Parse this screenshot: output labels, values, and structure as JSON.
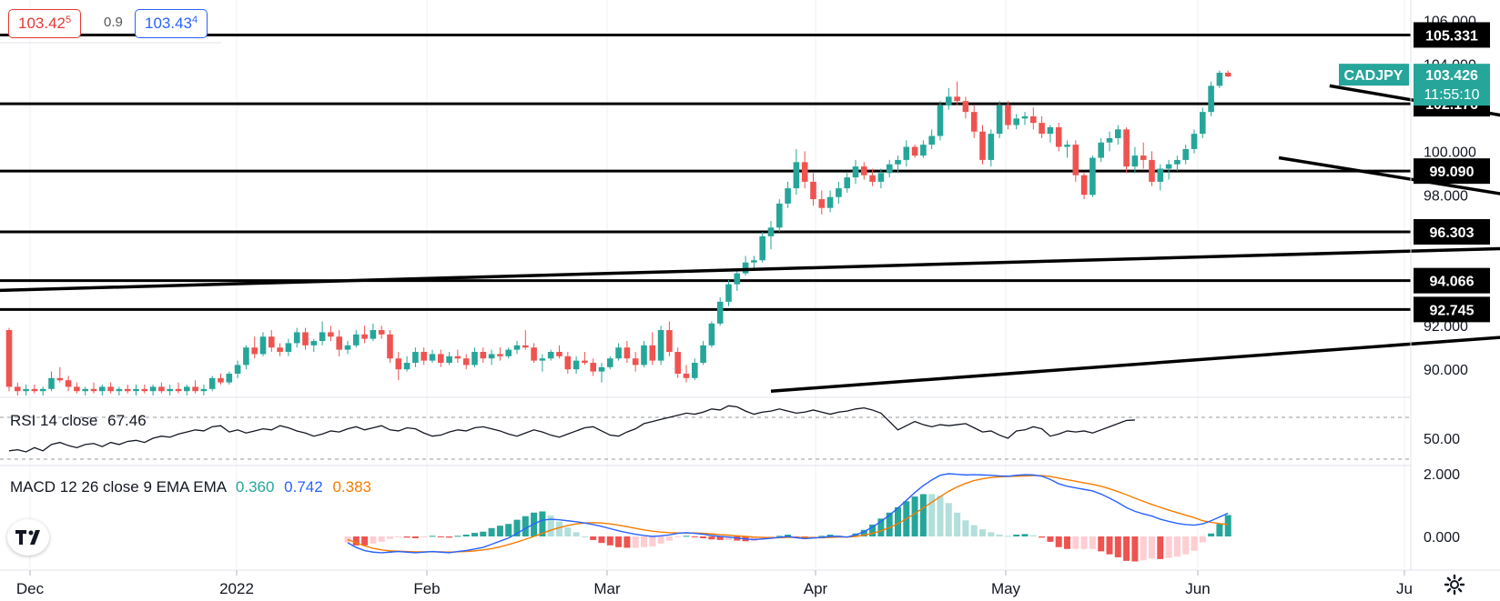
{
  "quote": {
    "bid_main": "103.42",
    "bid_sup": "5",
    "spread": "0.9",
    "ask_main": "103.43",
    "ask_sup": "4"
  },
  "colors": {
    "up": "#26a69a",
    "down": "#ef5350",
    "rsi": "#131722",
    "macd": "#2962ff",
    "signal": "#f57c00",
    "hist_up_strong": "#26a69a",
    "hist_up_weak": "#b2dfdb",
    "hist_down_strong": "#ef5350",
    "hist_down_weak": "#ffcdd2"
  },
  "rsi": {
    "label": "RSI 14 close",
    "value": "67.46"
  },
  "macd": {
    "label": "MACD 12 26 close 9 EMA EMA",
    "hist_value": "0.360",
    "macd_value": "0.742",
    "signal_value": "0.383"
  },
  "chart_data": {
    "type": "candlestick",
    "symbol": "CADJPY",
    "last_price": "103.426",
    "countdown": "11:55:10",
    "x_labels": [
      "Dec",
      "2022",
      "Feb",
      "Mar",
      "Apr",
      "May",
      "Jun",
      "Ju"
    ],
    "price_axis": {
      "min": 88.8,
      "max": 106.6,
      "ticks": [
        "106.000",
        "104.000",
        "100.000",
        "98.000",
        "92.000",
        "90.000"
      ]
    },
    "level_labels": [
      "105.331",
      "102.176",
      "99.090",
      "96.303",
      "94.066",
      "92.745"
    ],
    "horizontal_levels": [
      105.331,
      102.176,
      99.09,
      96.303,
      94.066,
      92.745
    ],
    "trendlines": [
      {
        "from": [
          -3,
          93.6
        ],
        "to": [
          222,
          96.03
        ]
      },
      {
        "from": [
          90,
          89.0
        ],
        "to": [
          237,
          93.2
        ]
      },
      {
        "from": [
          156,
          103.0
        ],
        "to": [
          210,
          99.4
        ]
      },
      {
        "from": [
          150,
          99.7
        ],
        "to": [
          204,
          96.3
        ]
      }
    ],
    "candles": [
      [
        91.8,
        91.9,
        89.0,
        89.2
      ],
      [
        89.2,
        89.4,
        88.8,
        89.0
      ],
      [
        89.0,
        89.3,
        88.8,
        89.1
      ],
      [
        89.1,
        89.3,
        88.9,
        89.0
      ],
      [
        89.0,
        89.2,
        88.8,
        89.1
      ],
      [
        89.1,
        89.9,
        89.0,
        89.6
      ],
      [
        89.6,
        90.1,
        89.4,
        89.5
      ],
      [
        89.5,
        89.7,
        89.0,
        89.2
      ],
      [
        89.2,
        89.4,
        88.9,
        89.0
      ],
      [
        89.0,
        89.2,
        88.8,
        89.1
      ],
      [
        89.1,
        89.4,
        88.9,
        89.0
      ],
      [
        89.0,
        89.3,
        88.8,
        89.2
      ],
      [
        89.2,
        89.4,
        88.9,
        89.0
      ],
      [
        89.0,
        89.2,
        88.8,
        89.1
      ],
      [
        89.1,
        89.3,
        88.9,
        89.0
      ],
      [
        89.0,
        89.3,
        88.8,
        89.1
      ],
      [
        89.1,
        89.3,
        88.9,
        89.0
      ],
      [
        89.0,
        89.3,
        88.8,
        89.2
      ],
      [
        89.2,
        89.4,
        88.9,
        89.0
      ],
      [
        89.0,
        89.3,
        88.8,
        89.1
      ],
      [
        89.1,
        89.4,
        88.9,
        89.0
      ],
      [
        89.0,
        89.3,
        88.8,
        89.2
      ],
      [
        89.2,
        89.5,
        88.9,
        89.0
      ],
      [
        89.0,
        89.3,
        88.8,
        89.1
      ],
      [
        89.1,
        89.7,
        89.0,
        89.6
      ],
      [
        89.6,
        89.8,
        89.3,
        89.4
      ],
      [
        89.4,
        89.9,
        89.3,
        89.8
      ],
      [
        89.8,
        90.4,
        89.6,
        90.2
      ],
      [
        90.2,
        91.1,
        90.0,
        91.0
      ],
      [
        91.0,
        91.5,
        90.5,
        90.7
      ],
      [
        90.7,
        91.7,
        90.6,
        91.5
      ],
      [
        91.5,
        91.8,
        90.8,
        91.0
      ],
      [
        91.0,
        91.2,
        90.6,
        90.8
      ],
      [
        90.8,
        91.4,
        90.6,
        91.2
      ],
      [
        91.2,
        91.9,
        91.0,
        91.7
      ],
      [
        91.7,
        91.9,
        90.9,
        91.1
      ],
      [
        91.1,
        91.4,
        90.8,
        91.3
      ],
      [
        91.3,
        92.2,
        91.1,
        91.7
      ],
      [
        91.7,
        92.0,
        91.3,
        91.5
      ],
      [
        91.5,
        91.8,
        90.6,
        90.9
      ],
      [
        90.9,
        91.3,
        90.7,
        91.1
      ],
      [
        91.1,
        91.8,
        91.0,
        91.6
      ],
      [
        91.6,
        92.0,
        91.2,
        91.4
      ],
      [
        91.4,
        92.1,
        91.3,
        91.8
      ],
      [
        91.8,
        92.0,
        91.4,
        91.6
      ],
      [
        91.6,
        91.8,
        90.3,
        90.5
      ],
      [
        90.5,
        90.8,
        89.5,
        90.0
      ],
      [
        90.0,
        90.6,
        89.9,
        90.3
      ],
      [
        90.3,
        91.0,
        90.1,
        90.8
      ],
      [
        90.8,
        91.0,
        90.2,
        90.4
      ],
      [
        90.4,
        90.9,
        90.3,
        90.7
      ],
      [
        90.7,
        90.9,
        90.1,
        90.3
      ],
      [
        90.3,
        90.8,
        90.2,
        90.6
      ],
      [
        90.6,
        90.9,
        90.3,
        90.5
      ],
      [
        90.5,
        90.7,
        90.0,
        90.2
      ],
      [
        90.2,
        91.0,
        90.1,
        90.8
      ],
      [
        90.8,
        91.0,
        90.3,
        90.5
      ],
      [
        90.5,
        90.9,
        90.2,
        90.7
      ],
      [
        90.7,
        91.0,
        90.4,
        90.6
      ],
      [
        90.6,
        91.0,
        90.5,
        90.9
      ],
      [
        90.9,
        91.3,
        90.7,
        91.1
      ],
      [
        91.1,
        91.8,
        90.9,
        91.0
      ],
      [
        91.0,
        91.2,
        90.3,
        90.4
      ],
      [
        90.4,
        90.7,
        89.9,
        90.5
      ],
      [
        90.5,
        90.9,
        90.4,
        90.8
      ],
      [
        90.8,
        91.1,
        90.5,
        90.6
      ],
      [
        90.6,
        90.8,
        89.8,
        90.0
      ],
      [
        90.0,
        90.6,
        89.8,
        90.4
      ],
      [
        90.4,
        90.8,
        90.2,
        90.3
      ],
      [
        90.3,
        90.5,
        89.7,
        89.9
      ],
      [
        89.9,
        90.3,
        89.4,
        90.1
      ],
      [
        90.1,
        90.6,
        90.0,
        90.5
      ],
      [
        90.5,
        91.2,
        90.4,
        91.0
      ],
      [
        91.0,
        91.3,
        90.3,
        90.5
      ],
      [
        90.5,
        90.8,
        89.9,
        90.2
      ],
      [
        90.2,
        91.3,
        90.1,
        91.1
      ],
      [
        91.1,
        91.7,
        90.2,
        90.4
      ],
      [
        90.4,
        92.0,
        90.2,
        91.8
      ],
      [
        91.8,
        92.2,
        90.6,
        90.8
      ],
      [
        90.8,
        91.0,
        89.6,
        89.8
      ],
      [
        89.8,
        90.2,
        89.4,
        89.6
      ],
      [
        89.6,
        90.5,
        89.5,
        90.3
      ],
      [
        90.3,
        91.3,
        90.2,
        91.1
      ],
      [
        91.1,
        92.2,
        91.0,
        92.1
      ],
      [
        92.1,
        93.3,
        92.0,
        93.1
      ],
      [
        93.1,
        94.1,
        92.9,
        93.9
      ],
      [
        93.9,
        94.5,
        93.6,
        94.4
      ],
      [
        94.4,
        95.2,
        94.3,
        94.9
      ],
      [
        94.9,
        95.2,
        94.6,
        95.0
      ],
      [
        95.0,
        96.3,
        94.9,
        96.1
      ],
      [
        96.1,
        96.8,
        95.5,
        96.5
      ],
      [
        96.5,
        97.8,
        96.3,
        97.6
      ],
      [
        97.6,
        98.6,
        97.4,
        98.3
      ],
      [
        98.3,
        100.1,
        98.0,
        99.5
      ],
      [
        99.5,
        100.0,
        98.3,
        98.6
      ],
      [
        98.6,
        99.0,
        97.5,
        97.8
      ],
      [
        97.8,
        98.2,
        97.1,
        97.4
      ],
      [
        97.4,
        98.2,
        97.2,
        97.9
      ],
      [
        97.9,
        98.6,
        97.6,
        98.3
      ],
      [
        98.3,
        99.0,
        98.1,
        98.8
      ],
      [
        98.8,
        99.6,
        98.5,
        99.3
      ],
      [
        99.3,
        99.5,
        98.7,
        98.9
      ],
      [
        98.9,
        99.2,
        98.4,
        98.6
      ],
      [
        98.6,
        99.2,
        98.3,
        99.0
      ],
      [
        99.0,
        99.6,
        98.8,
        99.4
      ],
      [
        99.4,
        99.8,
        99.0,
        99.6
      ],
      [
        99.6,
        100.5,
        99.3,
        100.2
      ],
      [
        100.2,
        100.3,
        99.7,
        99.8
      ],
      [
        99.8,
        100.5,
        99.7,
        100.3
      ],
      [
        100.3,
        101.0,
        100.1,
        100.7
      ],
      [
        100.7,
        102.3,
        100.5,
        102.1
      ],
      [
        102.1,
        102.9,
        101.9,
        102.5
      ],
      [
        102.5,
        103.2,
        102.1,
        102.3
      ],
      [
        102.3,
        102.5,
        101.5,
        101.8
      ],
      [
        101.8,
        102.1,
        100.6,
        100.9
      ],
      [
        100.9,
        101.2,
        99.4,
        99.6
      ],
      [
        99.6,
        101.0,
        99.3,
        100.8
      ],
      [
        100.8,
        102.3,
        100.6,
        102.1
      ],
      [
        102.1,
        102.3,
        101.0,
        101.2
      ],
      [
        101.2,
        101.7,
        101.0,
        101.5
      ],
      [
        101.5,
        101.8,
        101.2,
        101.6
      ],
      [
        101.6,
        102.0,
        101.0,
        101.3
      ],
      [
        101.3,
        101.6,
        100.6,
        100.8
      ],
      [
        100.8,
        101.2,
        100.4,
        101.1
      ],
      [
        101.1,
        101.3,
        100.0,
        100.2
      ],
      [
        100.2,
        100.5,
        99.7,
        100.3
      ],
      [
        100.3,
        100.5,
        98.6,
        98.9
      ],
      [
        98.9,
        99.0,
        97.8,
        98.0
      ],
      [
        98.0,
        99.8,
        97.9,
        99.7
      ],
      [
        99.7,
        100.6,
        99.5,
        100.4
      ],
      [
        100.4,
        100.9,
        100.0,
        100.6
      ],
      [
        100.6,
        101.2,
        100.3,
        101.0
      ],
      [
        101.0,
        101.1,
        99.0,
        99.3
      ],
      [
        99.3,
        100.2,
        99.0,
        99.8
      ],
      [
        99.8,
        100.4,
        99.2,
        99.6
      ],
      [
        99.6,
        100.0,
        98.4,
        98.6
      ],
      [
        98.6,
        99.4,
        98.2,
        99.2
      ],
      [
        99.2,
        99.6,
        98.7,
        99.4
      ],
      [
        99.4,
        99.8,
        99.1,
        99.6
      ],
      [
        99.6,
        100.3,
        99.4,
        100.1
      ],
      [
        100.1,
        101.0,
        99.9,
        100.8
      ],
      [
        100.8,
        102.0,
        100.6,
        101.8
      ],
      [
        101.8,
        103.2,
        101.6,
        103.0
      ],
      [
        103.0,
        103.7,
        102.9,
        103.6
      ],
      [
        103.6,
        103.7,
        103.4,
        103.43
      ]
    ],
    "rsi": {
      "axis_ticks": [
        "50.00"
      ],
      "upper_band": 70,
      "lower_band": 30,
      "values": [
        38,
        39,
        37,
        41,
        38,
        44,
        46,
        43,
        41,
        44,
        45,
        42,
        46,
        44,
        47,
        48,
        46,
        50,
        52,
        51,
        54,
        56,
        58,
        57,
        61,
        62,
        56,
        58,
        55,
        57,
        59,
        58,
        62,
        60,
        57,
        55,
        52,
        54,
        57,
        56,
        59,
        61,
        58,
        60,
        62,
        58,
        57,
        60,
        59,
        55,
        52,
        53,
        56,
        58,
        57,
        60,
        61,
        59,
        57,
        54,
        52,
        55,
        58,
        56,
        53,
        51,
        54,
        57,
        60,
        61,
        57,
        53,
        52,
        56,
        59,
        64,
        66,
        68,
        70,
        72,
        74,
        73,
        75,
        78,
        77,
        81,
        80,
        76,
        73,
        75,
        76,
        78,
        76,
        74,
        75,
        77,
        75,
        73,
        75,
        76,
        78,
        79,
        77,
        74,
        66,
        58,
        62,
        66,
        63,
        61,
        63,
        62,
        63,
        64,
        60,
        56,
        57,
        53,
        50,
        57,
        58,
        61,
        59,
        52,
        54,
        57,
        56,
        57,
        55,
        58,
        61,
        64,
        67,
        67.46
      ]
    },
    "macd": {
      "axis_ticks": [
        "2.000",
        "0.000"
      ],
      "macd": [
        -0.2,
        -0.35,
        -0.45,
        -0.5,
        -0.52,
        -0.5,
        -0.48,
        -0.5,
        -0.52,
        -0.5,
        -0.48,
        -0.5,
        -0.52,
        -0.48,
        -0.45,
        -0.4,
        -0.35,
        -0.25,
        -0.15,
        -0.05,
        0.1,
        0.25,
        0.4,
        0.52,
        0.55,
        0.53,
        0.5,
        0.47,
        0.43,
        0.38,
        0.32,
        0.25,
        0.18,
        0.12,
        0.07,
        0.03,
        0.0,
        0.02,
        0.05,
        0.1,
        0.12,
        0.1,
        0.07,
        0.03,
        0.0,
        -0.02,
        -0.05,
        -0.08,
        -0.1,
        -0.08,
        -0.06,
        -0.03,
        0.0,
        -0.04,
        -0.07,
        -0.05,
        -0.03,
        0.0,
        0.0,
        -0.02,
        0.05,
        0.15,
        0.3,
        0.48,
        0.68,
        0.9,
        1.15,
        1.4,
        1.62,
        1.8,
        1.95,
        2.0,
        1.98,
        1.96,
        1.97,
        1.96,
        1.95,
        1.93,
        1.92,
        1.95,
        1.97,
        1.96,
        1.92,
        1.82,
        1.68,
        1.6,
        1.55,
        1.5,
        1.45,
        1.35,
        1.22,
        1.08,
        0.92,
        0.8,
        0.72,
        0.65,
        0.55,
        0.48,
        0.42,
        0.38,
        0.36,
        0.4,
        0.5,
        0.62,
        0.742
      ],
      "signal": [
        -0.1,
        -0.2,
        -0.3,
        -0.38,
        -0.43,
        -0.46,
        -0.47,
        -0.48,
        -0.49,
        -0.49,
        -0.49,
        -0.49,
        -0.5,
        -0.49,
        -0.48,
        -0.46,
        -0.43,
        -0.39,
        -0.33,
        -0.26,
        -0.18,
        -0.09,
        0.0,
        0.1,
        0.2,
        0.28,
        0.35,
        0.4,
        0.43,
        0.44,
        0.43,
        0.4,
        0.36,
        0.31,
        0.26,
        0.21,
        0.17,
        0.14,
        0.12,
        0.11,
        0.11,
        0.11,
        0.1,
        0.08,
        0.06,
        0.04,
        0.02,
        0.0,
        -0.02,
        -0.03,
        -0.04,
        -0.04,
        -0.03,
        -0.03,
        -0.04,
        -0.04,
        -0.04,
        -0.03,
        -0.02,
        -0.02,
        0.0,
        0.04,
        0.1,
        0.18,
        0.28,
        0.41,
        0.56,
        0.73,
        0.91,
        1.09,
        1.27,
        1.44,
        1.58,
        1.69,
        1.78,
        1.84,
        1.88,
        1.9,
        1.91,
        1.92,
        1.93,
        1.94,
        1.94,
        1.91,
        1.86,
        1.81,
        1.76,
        1.71,
        1.66,
        1.6,
        1.52,
        1.43,
        1.33,
        1.22,
        1.12,
        1.02,
        0.93,
        0.84,
        0.76,
        0.68,
        0.6,
        0.5,
        0.45,
        0.41,
        0.383
      ]
    }
  }
}
